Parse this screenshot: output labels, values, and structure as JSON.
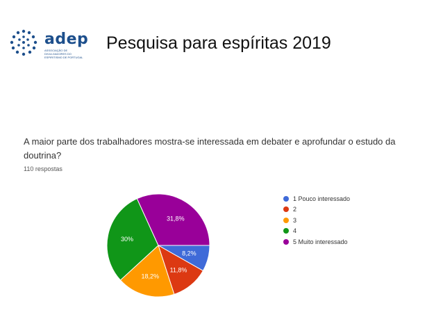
{
  "logo": {
    "name": "adep",
    "subtitle": "ASSOCIAÇÃO DE DIVULGADORES DO ESPIRITISMO DE PORTUGAL",
    "color": "#1d4f8c"
  },
  "slide_title": "Pesquisa para espíritas  2019",
  "chart_data": {
    "type": "pie",
    "title": "A maior parte dos trabalhadores mostra-se interessada em debater e aprofundar o estudo da doutrina?",
    "subtitle": "110 respostas",
    "categories": [
      "1 Pouco interessado",
      "2",
      "3",
      "4",
      "5 Muito interessado"
    ],
    "values": [
      8.2,
      11.8,
      18.2,
      30.0,
      31.8
    ],
    "labels": [
      "8,2%",
      "11,8%",
      "18,2%",
      "30%",
      "31,8%"
    ],
    "colors": [
      "#3f6ad8",
      "#dc3912",
      "#ff9900",
      "#109618",
      "#990099"
    ],
    "legend": "right"
  }
}
